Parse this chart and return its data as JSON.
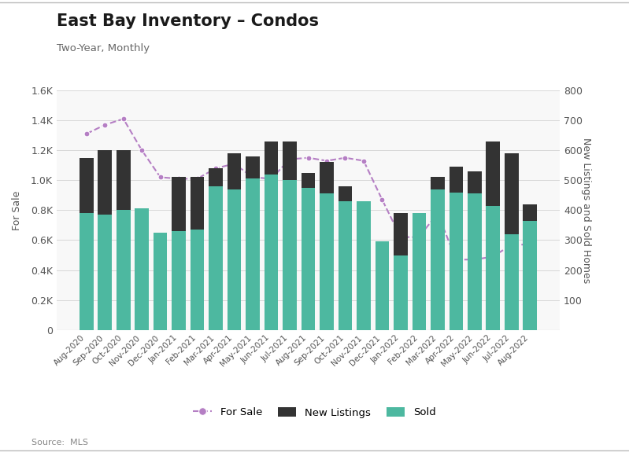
{
  "title": "East Bay Inventory – Condos",
  "subtitle": "Two-Year, Monthly",
  "source": "Source:  MLS",
  "months": [
    "Aug-2020",
    "Sep-2020",
    "Oct-2020",
    "Nov-2020",
    "Dec-2020",
    "Jan-2021",
    "Feb-2021",
    "Mar-2021",
    "Apr-2021",
    "May-2021",
    "Jun-2021",
    "Jul-2021",
    "Aug-2021",
    "Sep-2021",
    "Oct-2021",
    "Nov-2021",
    "Dec-2021",
    "Jan-2022",
    "Feb-2022",
    "Mar-2022",
    "Apr-2022",
    "May-2022",
    "Jun-2022",
    "Jul-2022",
    "Aug-2022"
  ],
  "for_sale_line": [
    1310,
    1370,
    1410,
    1200,
    1020,
    1010,
    1010,
    1080,
    1110,
    1020,
    1010,
    1140,
    1150,
    1130,
    1150,
    1130,
    870,
    620,
    620,
    780,
    470,
    470,
    490,
    570,
    570
  ],
  "new_listings": [
    575,
    600,
    600,
    385,
    320,
    510,
    510,
    540,
    590,
    580,
    630,
    630,
    525,
    560,
    480,
    330,
    220,
    390,
    245,
    510,
    545,
    530,
    630,
    590,
    420
  ],
  "sold": [
    390,
    385,
    400,
    405,
    325,
    330,
    335,
    480,
    470,
    505,
    520,
    500,
    475,
    455,
    430,
    430,
    295,
    250,
    390,
    470,
    460,
    455,
    415,
    320,
    365
  ],
  "ylabel_left": "For Sale",
  "ylabel_right": "New Listings and Sold Homes",
  "ylim_left": [
    0,
    1600
  ],
  "ylim_right": [
    0,
    800
  ],
  "left_yticks": [
    0,
    200,
    400,
    600,
    800,
    1000,
    1200,
    1400,
    1600
  ],
  "right_yticks": [
    0,
    100,
    200,
    300,
    400,
    500,
    600,
    700,
    800
  ],
  "bar_color_new": "#333333",
  "bar_color_sold": "#4db8a0",
  "line_color": "#b57fc4",
  "bg_color": "#ffffff",
  "plot_bg_color": "#f8f8f8",
  "grid_color": "#d8d8d8",
  "legend_labels": [
    "For Sale",
    "New Listings",
    "Sold"
  ]
}
